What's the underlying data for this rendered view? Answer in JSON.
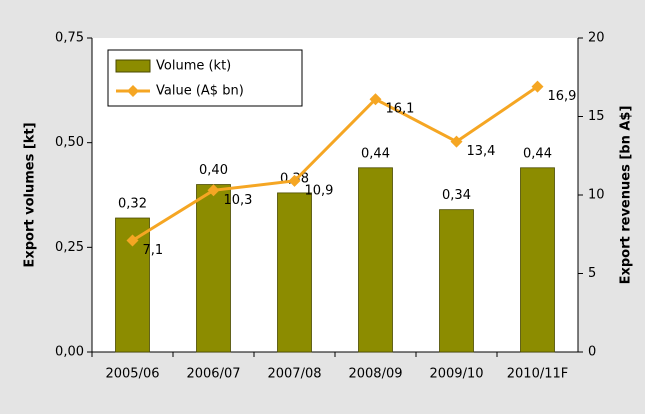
{
  "chart_data": {
    "type": "bar_line",
    "categories": [
      "2005/06",
      "2006/07",
      "2007/08",
      "2008/09",
      "2009/10",
      "2010/11F"
    ],
    "ylabel": "Export volumes [kt]",
    "y2label": "Export revenues [bn A$]",
    "series": [
      {
        "name": "Volume (kt)",
        "type": "bar",
        "color": "#8c8c00",
        "values": [
          0.32,
          0.4,
          0.38,
          0.44,
          0.34,
          0.44
        ],
        "value_labels": [
          "0,32",
          "0,40",
          "0,38",
          "0,44",
          "0,34",
          "0,44"
        ]
      },
      {
        "name": "Value (A$ bn)",
        "type": "line",
        "axis": "y2",
        "color": "#f5a623",
        "values": [
          7.1,
          10.3,
          10.9,
          16.1,
          13.4,
          16.9
        ],
        "value_labels": [
          "7,1",
          "10,3",
          "10,9",
          "16,1",
          "13,4",
          "16,9"
        ]
      }
    ],
    "ylim": [
      0,
      0.75
    ],
    "yticks": [
      {
        "value": 0,
        "label": "0,00"
      },
      {
        "value": 0.25,
        "label": "0,25"
      },
      {
        "value": 0.5,
        "label": "0,50"
      },
      {
        "value": 0.75,
        "label": "0,75"
      }
    ],
    "y2lim": [
      0,
      20
    ],
    "y2ticks": [
      0,
      5,
      10,
      15,
      20
    ],
    "legend": "upper left"
  }
}
